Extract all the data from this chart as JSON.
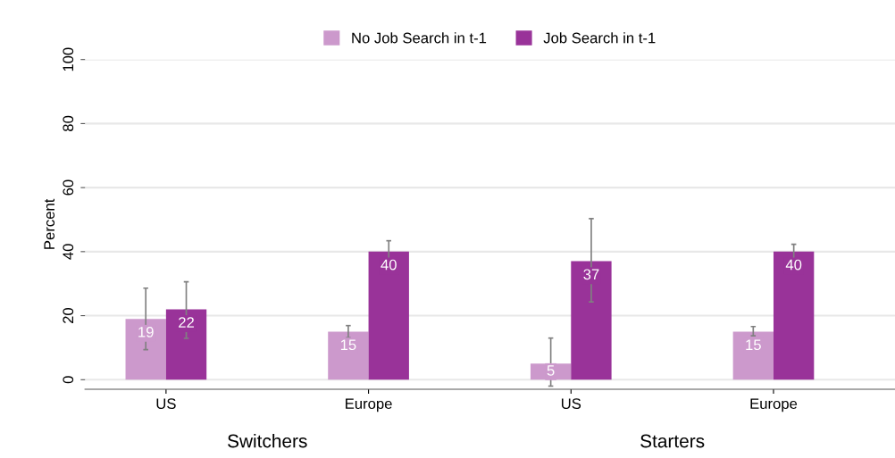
{
  "chart_data": {
    "type": "bar",
    "ylabel": "Percent",
    "categories": [
      "US",
      "Europe",
      "US",
      "Europe"
    ],
    "series": [
      {
        "name": "No Job Search in t-1",
        "color": "#cc99cc",
        "values": [
          19,
          15,
          5,
          15
        ],
        "errors": [
          [
            9.4,
            28.6
          ],
          [
            13.1,
            16.9
          ],
          [
            -2,
            13
          ],
          [
            13.7,
            16.6
          ]
        ]
      },
      {
        "name": "Job Search in t-1",
        "color": "#993399",
        "values": [
          22,
          40,
          37,
          40
        ],
        "errors": [
          [
            12.9,
            30.6
          ],
          [
            36.6,
            43.4
          ],
          [
            24.3,
            50.3
          ],
          [
            37.7,
            42.3
          ]
        ]
      }
    ],
    "annotations": [
      "Switchers",
      "Starters"
    ],
    "ylim": [
      -3,
      100
    ],
    "yticks": [
      0,
      20,
      40,
      60,
      80,
      100
    ],
    "grid": "y",
    "legend": "top",
    "data_labels": true
  }
}
